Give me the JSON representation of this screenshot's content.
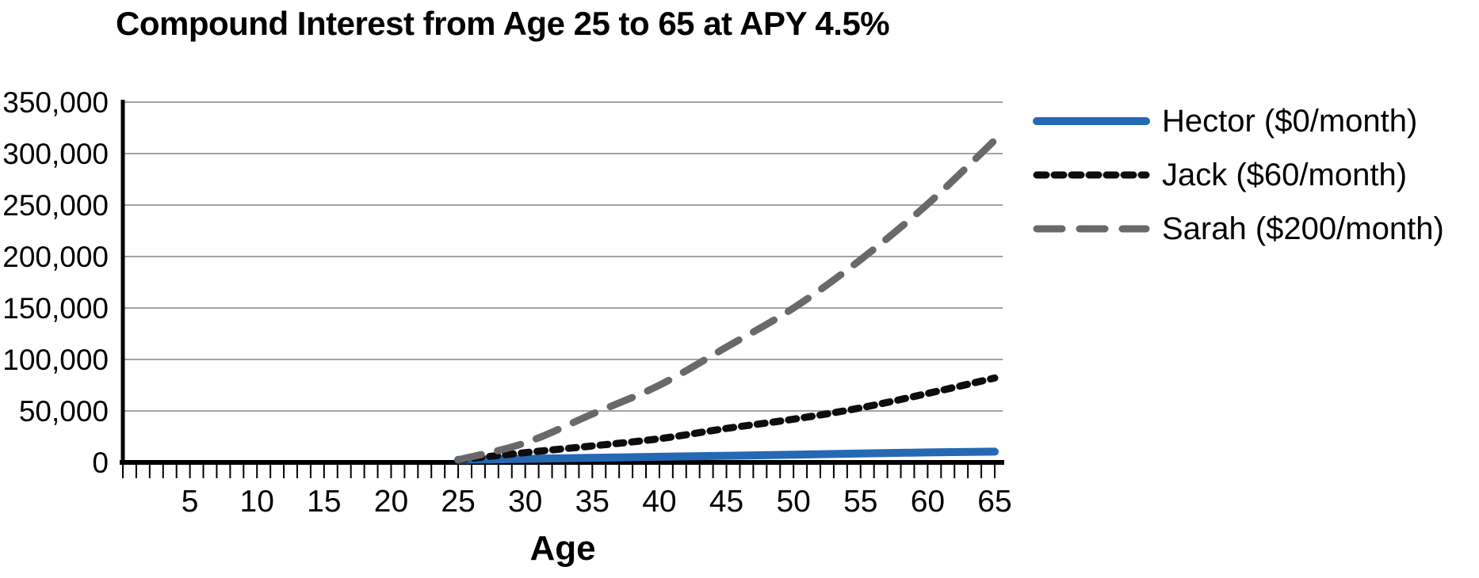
{
  "chart": {
    "title": "Compound Interest from Age 25 to 65 at APY 4.5%",
    "xlabel": "Age"
  },
  "chart_data": {
    "type": "line",
    "title": "Compound Interest from Age 25 to 65 at APY 4.5%",
    "xlabel": "Age",
    "ylabel": "",
    "xlim": [
      0,
      66
    ],
    "ylim": [
      0,
      350000
    ],
    "x_tick_labels": [
      5,
      10,
      15,
      20,
      25,
      30,
      35,
      40,
      45,
      50,
      55,
      60,
      65
    ],
    "y_tick_values": [
      0,
      50000,
      100000,
      150000,
      200000,
      250000,
      300000,
      350000
    ],
    "grid": "horizontal",
    "legend_position": "right",
    "x": [
      25,
      30,
      35,
      40,
      45,
      50,
      55,
      60,
      65
    ],
    "series": [
      {
        "name": "Hector ($0/month)",
        "person": "Hector",
        "monthly_contribution": "$0/month",
        "color": "#2569b4",
        "style": "solid",
        "values": [
          2500,
          3500,
          4500,
          5500,
          6500,
          7500,
          8700,
          9700,
          10500
        ]
      },
      {
        "name": "Jack ($60/month)",
        "person": "Jack",
        "monthly_contribution": "$60/month",
        "color": "#0d0d0d",
        "style": "dotted",
        "values": [
          2500,
          9500,
          16000,
          23000,
          33000,
          42000,
          53000,
          67000,
          82000
        ]
      },
      {
        "name": "Sarah ($200/month)",
        "person": "Sarah",
        "monthly_contribution": "$200/month",
        "color": "#696969",
        "style": "dashed",
        "values": [
          2500,
          19000,
          47000,
          75000,
          112000,
          150000,
          197000,
          251000,
          313000
        ]
      }
    ],
    "colors": {
      "gridline": "#a3a3a3",
      "axis": "#000000",
      "text": "#000000"
    }
  }
}
